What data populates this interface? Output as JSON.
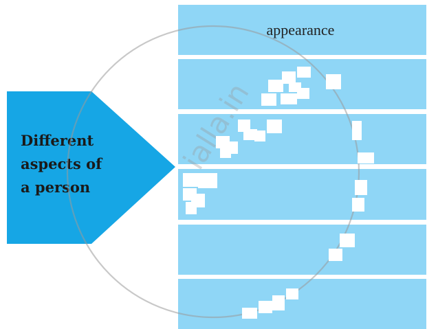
{
  "arrow": {
    "lines": [
      "Different",
      "aspects of",
      "a person"
    ],
    "color": "#16a6e5"
  },
  "bands": {
    "color": "#8fd6f6",
    "items": [
      {
        "label": "appearance"
      },
      {
        "label": ""
      },
      {
        "label": ""
      },
      {
        "label": ""
      },
      {
        "label": ""
      },
      {
        "label": ""
      }
    ]
  },
  "watermark": {
    "text": "ialla.in",
    "color": "#9a9a9a"
  }
}
